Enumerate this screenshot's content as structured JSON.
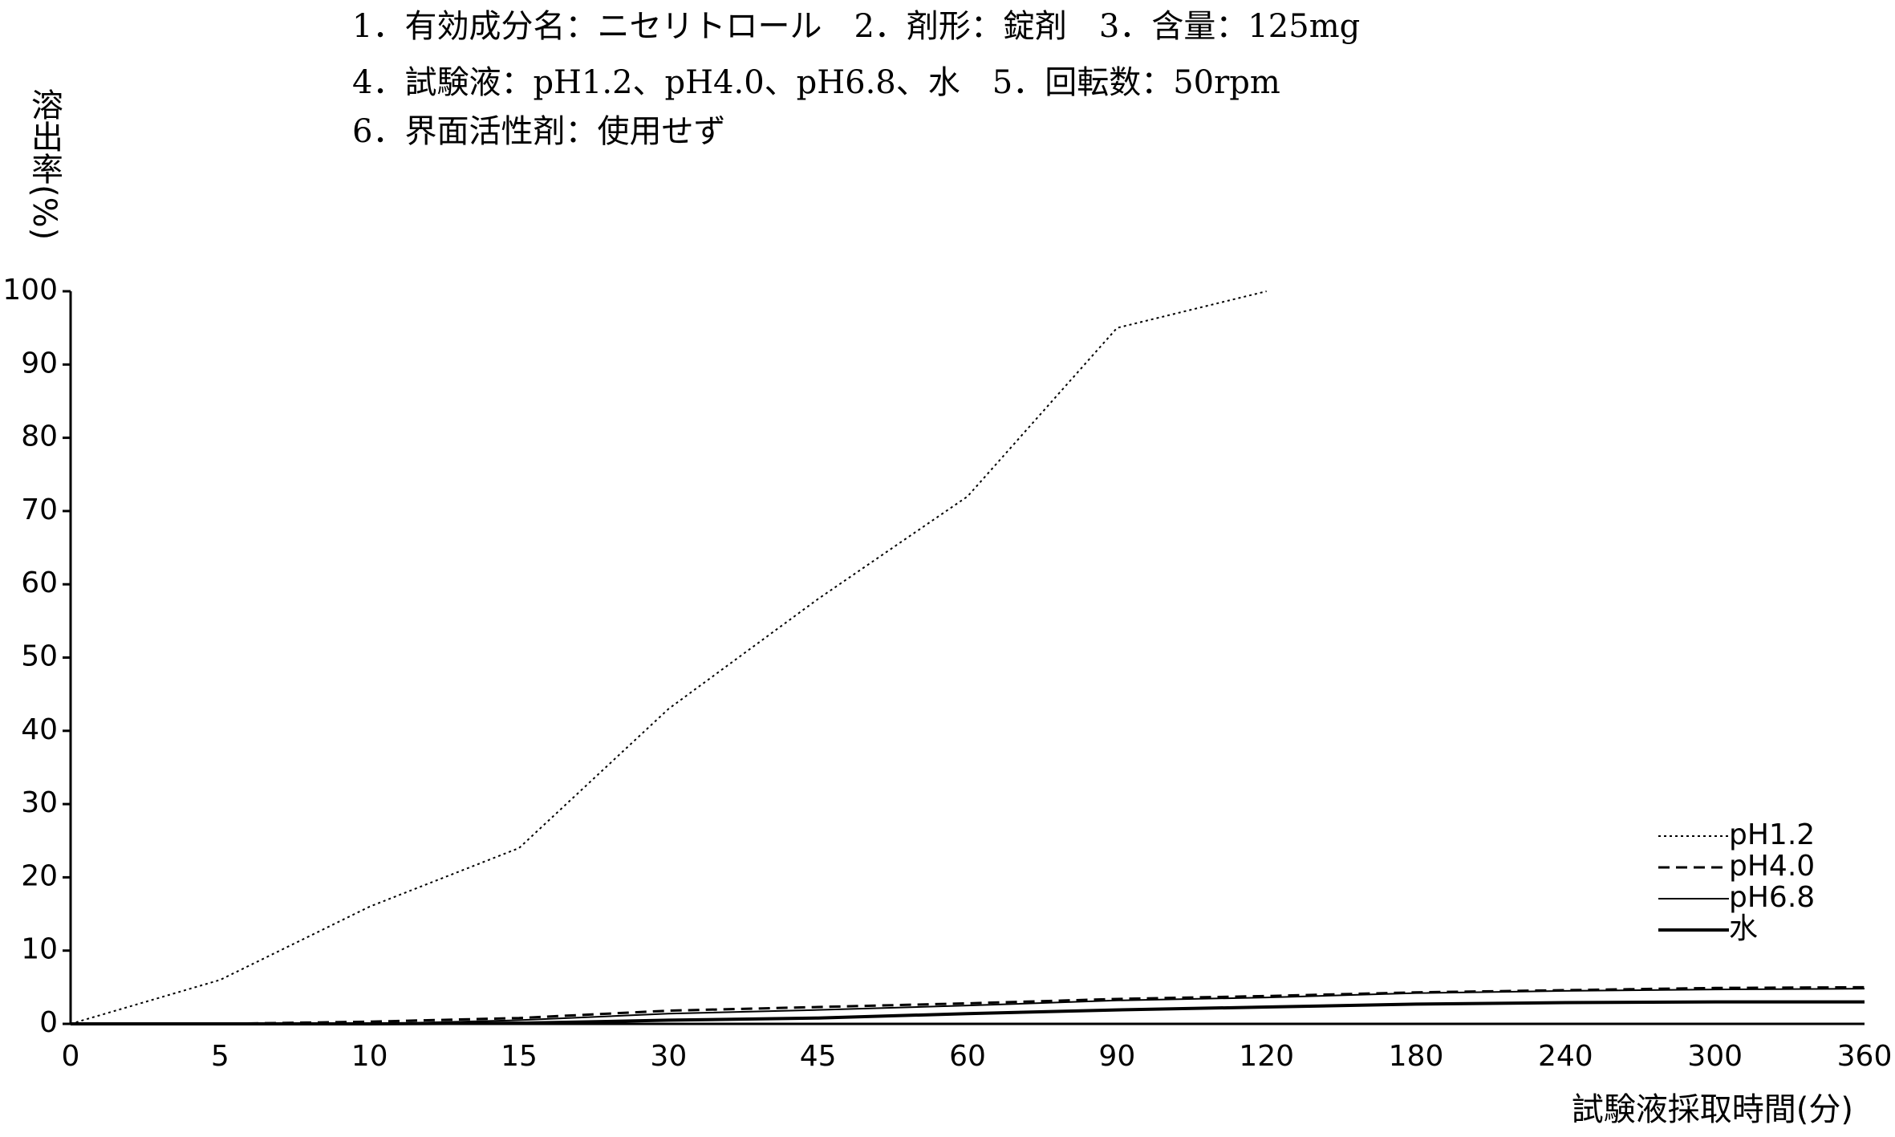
{
  "chart_data": {
    "type": "line",
    "title_lines": [
      "1．有効成分名：ニセリトロール　2．剤形：錠剤　3．含量：125mg",
      "4．試験液：pH1.2、pH4.0、pH6.8、水　5．回転数：50rpm",
      "6．界面活性剤：使用せず"
    ],
    "y_label": "溶出率(%)",
    "x_label": "試験液採取時間(分)",
    "categories": [
      "0",
      "5",
      "10",
      "15",
      "30",
      "45",
      "60",
      "90",
      "120",
      "180",
      "240",
      "300",
      "360"
    ],
    "ylim": [
      0,
      100
    ],
    "yticks": [
      0,
      10,
      20,
      30,
      40,
      50,
      60,
      70,
      80,
      90,
      100
    ],
    "legend": "lower right",
    "series": [
      {
        "name": "pH1.2",
        "color": "#000000",
        "style": "dotted",
        "values": [
          0,
          6,
          16,
          24,
          43,
          58,
          72,
          95,
          100,
          null,
          null,
          null,
          null
        ]
      },
      {
        "name": "pH4.0",
        "color": "#000000",
        "style": "dashed",
        "values": [
          0,
          0,
          0.3,
          0.8,
          1.8,
          2.3,
          2.8,
          3.4,
          3.8,
          4.3,
          4.6,
          4.9,
          5
        ]
      },
      {
        "name": "pH6.8",
        "color": "#000000",
        "style": "thin",
        "values": [
          0,
          0,
          0,
          0.5,
          1.4,
          1.9,
          2.5,
          3.2,
          3.6,
          4.2,
          4.5,
          4.7,
          4.8
        ]
      },
      {
        "name": "水",
        "color": "#000000",
        "style": "thick",
        "values": [
          0,
          0,
          0,
          0.1,
          0.5,
          0.8,
          1.4,
          1.9,
          2.3,
          2.7,
          2.9,
          3,
          3
        ]
      }
    ]
  }
}
